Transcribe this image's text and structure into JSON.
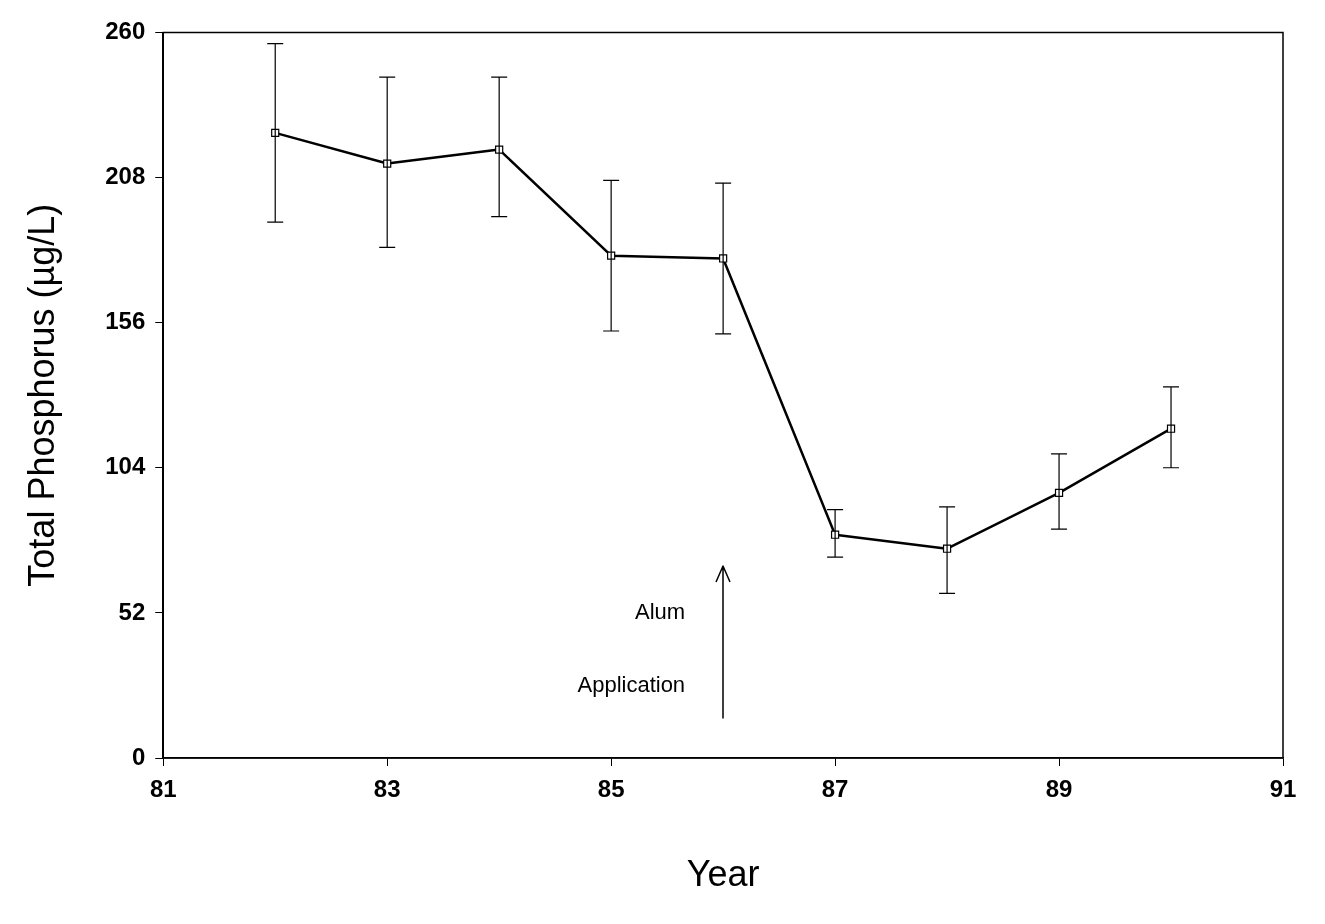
{
  "chart_data": {
    "type": "line",
    "xlabel": "Year",
    "ylabel": "Total Phosphorus (µg/L)",
    "x": [
      82,
      83,
      84,
      85,
      86,
      87,
      88,
      89,
      90
    ],
    "values": [
      224,
      213,
      218,
      180,
      179,
      80,
      75,
      95,
      118
    ],
    "errors": [
      [
        192,
        256
      ],
      [
        183,
        244
      ],
      [
        194,
        244
      ],
      [
        153,
        207
      ],
      [
        152,
        206
      ],
      [
        72,
        89
      ],
      [
        59,
        90
      ],
      [
        82,
        109
      ],
      [
        104,
        133
      ]
    ],
    "color": "#000000",
    "marker": "square",
    "line_style": "solid",
    "grid": false,
    "legend": false,
    "xlim": [
      81,
      91
    ],
    "xticks": [
      81,
      83,
      85,
      87,
      89,
      91
    ],
    "ylim": [
      0,
      260
    ],
    "yticks": [
      0,
      52,
      104,
      156,
      208,
      260
    ],
    "ref_lines": [
      {
        "axis": "x",
        "value": 86,
        "label": "Alum Application",
        "color": "#000000"
      }
    ]
  }
}
